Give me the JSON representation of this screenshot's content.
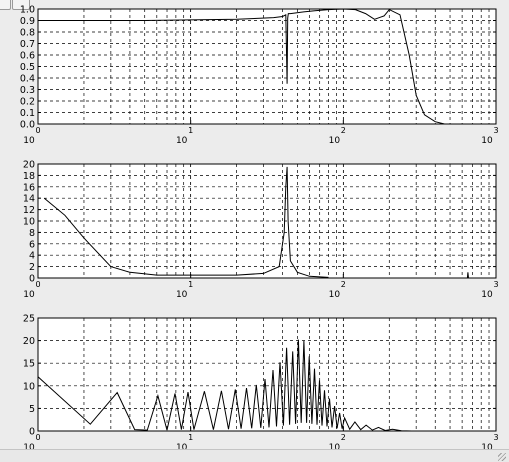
{
  "colors": {
    "background": "#ececec",
    "plot_face": "#ffffff",
    "axes": "#000000",
    "grid": "#000000",
    "curve": "#000000"
  },
  "toolbar": {
    "zoom_icon": "zoom-icon",
    "rotate_icon": "rotate-icon"
  },
  "chart_data": [
    {
      "type": "line",
      "title": "",
      "xscale": "log",
      "xlim": [
        1,
        1000
      ],
      "ylim": [
        0,
        1
      ],
      "xticks": [
        {
          "value": 1,
          "base": "10",
          "exp": "0"
        },
        {
          "value": 10,
          "base": "10",
          "exp": "1"
        },
        {
          "value": 100,
          "base": "10",
          "exp": "2"
        },
        {
          "value": 1000,
          "base": "10",
          "exp": "3"
        }
      ],
      "yticks": [
        "0.0",
        "0.1",
        "0.2",
        "0.3",
        "0.4",
        "0.5",
        "0.6",
        "0.7",
        "0.8",
        "0.9",
        "1.0"
      ],
      "yticks_values": [
        0,
        0.1,
        0.2,
        0.3,
        0.4,
        0.5,
        0.6,
        0.7,
        0.8,
        0.9,
        1.0
      ],
      "grid": true,
      "x": [
        1,
        2,
        5,
        10,
        20,
        35,
        40,
        42,
        42.8,
        43.2,
        43.6,
        45,
        55,
        65,
        80,
        100,
        120,
        140,
        160,
        185,
        200,
        235,
        270,
        300,
        340,
        400,
        460
      ],
      "y": [
        0.9,
        0.9,
        0.9,
        0.905,
        0.91,
        0.925,
        0.935,
        0.95,
        0.35,
        0.92,
        0.96,
        0.96,
        0.975,
        0.985,
        0.995,
        1.0,
        0.995,
        0.96,
        0.91,
        0.94,
        0.995,
        0.95,
        0.6,
        0.25,
        0.08,
        0.02,
        0.0
      ]
    },
    {
      "type": "line",
      "title": "",
      "xscale": "log",
      "xlim": [
        1,
        1000
      ],
      "ylim": [
        0,
        20
      ],
      "xticks": [
        {
          "value": 1,
          "base": "10",
          "exp": "0"
        },
        {
          "value": 10,
          "base": "10",
          "exp": "1"
        },
        {
          "value": 100,
          "base": "10",
          "exp": "2"
        },
        {
          "value": 1000,
          "base": "10",
          "exp": "3"
        }
      ],
      "yticks": [
        "0",
        "2",
        "4",
        "6",
        "8",
        "10",
        "12",
        "14",
        "16",
        "18",
        "20"
      ],
      "yticks_values": [
        0,
        2,
        4,
        6,
        8,
        10,
        12,
        14,
        16,
        18,
        20
      ],
      "grid": true,
      "x": [
        1.1,
        1.5,
        2,
        3,
        4,
        6,
        10,
        20,
        30,
        38,
        41,
        42,
        42.8,
        43.5,
        45,
        50,
        60,
        80
      ],
      "y": [
        14,
        11,
        7,
        2,
        1,
        0.5,
        0.5,
        0.5,
        0.8,
        2,
        8,
        16,
        19.5,
        10,
        3,
        1,
        0.3,
        0.1
      ],
      "x_extra": [
        650,
        655,
        660
      ],
      "y_extra": [
        0,
        1,
        0
      ]
    },
    {
      "type": "line",
      "title": "",
      "xscale": "log",
      "xlim": [
        1,
        1000
      ],
      "ylim": [
        0,
        25
      ],
      "xticks": [
        {
          "value": 1,
          "base": "10",
          "exp": "0"
        },
        {
          "value": 10,
          "base": "10",
          "exp": "1"
        },
        {
          "value": 100,
          "base": "10",
          "exp": "2"
        },
        {
          "value": 1000,
          "base": "10",
          "exp": "3"
        }
      ],
      "yticks": [
        "0",
        "5",
        "10",
        "15",
        "20",
        "25"
      ],
      "yticks_values": [
        0,
        5,
        10,
        15,
        20,
        25
      ],
      "grid": true,
      "x": [
        1,
        2.2,
        3.3,
        4.3,
        5.2,
        6.1,
        7,
        7.9,
        8.7,
        9.6,
        10.5,
        12.3,
        14.1,
        15.9,
        17.7,
        19.6,
        21.4,
        23.2,
        25.1,
        26.9,
        28.8,
        30.7,
        32.6,
        34.6,
        36.5,
        38.5,
        40.5,
        42.5,
        44.5,
        46.6,
        48.7,
        50.8,
        53,
        55.2,
        57.5,
        59.8,
        62.2,
        64.7,
        67.2,
        69.8,
        72.5,
        75.3,
        78.2,
        81.2,
        84.3,
        87.6,
        91,
        94.5,
        98.2,
        102,
        110,
        119,
        130,
        141,
        155,
        170,
        188,
        210,
        240,
        280
      ],
      "y": [
        12,
        1.5,
        8.5,
        0.3,
        0.2,
        7.8,
        0.2,
        8.3,
        0.3,
        8.6,
        0.3,
        8.8,
        0.3,
        8.9,
        0.4,
        9.2,
        0.5,
        9.5,
        0.6,
        10.2,
        0.7,
        11.5,
        0.8,
        13.5,
        1.0,
        15.2,
        1.2,
        18.4,
        1.4,
        17.6,
        1.6,
        20.2,
        1.8,
        20.0,
        1.8,
        16.5,
        1.6,
        13.8,
        1.4,
        11.2,
        1.2,
        9.0,
        1.0,
        7.2,
        0.8,
        5.5,
        0.6,
        4.0,
        0.5,
        2.9,
        0.4,
        2.0,
        0.3,
        1.3,
        0.2,
        0.8,
        0.1,
        0.4,
        0.05,
        0.0
      ]
    }
  ]
}
